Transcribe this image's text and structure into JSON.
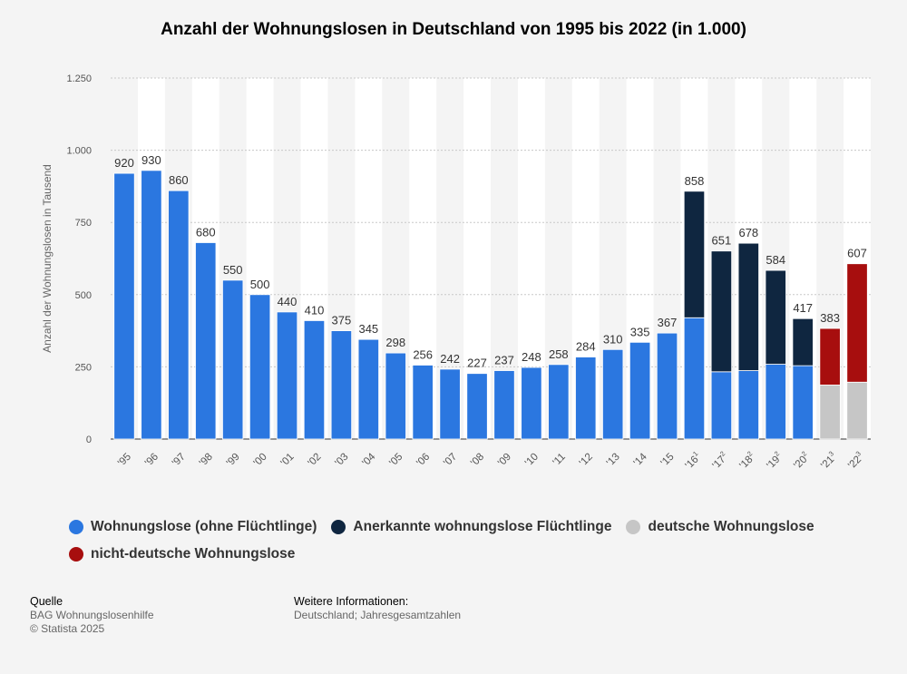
{
  "chart_data": {
    "type": "bar",
    "title": "Anzahl der Wohnungslosen in Deutschland von 1995 bis 2022 (in 1.000)",
    "ylabel": "Anzahl der Wohnungslosen in Tausend",
    "ylim": [
      0,
      1250
    ],
    "yticks": [
      0,
      250,
      500,
      750,
      1000,
      1250
    ],
    "ytick_labels": [
      "0",
      "250",
      "500",
      "750",
      "1.000",
      "1.250"
    ],
    "grid": true,
    "legend_position": "bottom",
    "categories": [
      {
        "label": "'95",
        "sup": ""
      },
      {
        "label": "'96",
        "sup": ""
      },
      {
        "label": "'97",
        "sup": ""
      },
      {
        "label": "'98",
        "sup": ""
      },
      {
        "label": "'99",
        "sup": ""
      },
      {
        "label": "'00",
        "sup": ""
      },
      {
        "label": "'01",
        "sup": ""
      },
      {
        "label": "'02",
        "sup": ""
      },
      {
        "label": "'03",
        "sup": ""
      },
      {
        "label": "'04",
        "sup": ""
      },
      {
        "label": "'05",
        "sup": ""
      },
      {
        "label": "'06",
        "sup": ""
      },
      {
        "label": "'07",
        "sup": ""
      },
      {
        "label": "'08",
        "sup": ""
      },
      {
        "label": "'09",
        "sup": ""
      },
      {
        "label": "'10",
        "sup": ""
      },
      {
        "label": "'11",
        "sup": ""
      },
      {
        "label": "'12",
        "sup": ""
      },
      {
        "label": "'13",
        "sup": ""
      },
      {
        "label": "'14",
        "sup": ""
      },
      {
        "label": "'15",
        "sup": ""
      },
      {
        "label": "'16",
        "sup": "1"
      },
      {
        "label": "'17",
        "sup": "2"
      },
      {
        "label": "'18",
        "sup": "2"
      },
      {
        "label": "'19",
        "sup": "2"
      },
      {
        "label": "'20",
        "sup": "2"
      },
      {
        "label": "'21",
        "sup": "3"
      },
      {
        "label": "'22",
        "sup": "3"
      }
    ],
    "series": [
      {
        "name": "Wohnungslose (ohne Flüchtlinge)",
        "color": "#2b77e0",
        "values": [
          920,
          930,
          860,
          680,
          550,
          500,
          440,
          410,
          375,
          345,
          298,
          256,
          242,
          227,
          237,
          248,
          258,
          284,
          310,
          335,
          367,
          420,
          233,
          237,
          259,
          254,
          null,
          null
        ]
      },
      {
        "name": "Anerkannte wohnungslose Flüchtlinge",
        "color": "#0f2640",
        "values": [
          null,
          null,
          null,
          null,
          null,
          null,
          null,
          null,
          null,
          null,
          null,
          null,
          null,
          null,
          null,
          null,
          null,
          null,
          null,
          null,
          null,
          438,
          418,
          441,
          325,
          163,
          null,
          null
        ]
      },
      {
        "name": "deutsche Wohnungslose",
        "color": "#c6c6c6",
        "values": [
          null,
          null,
          null,
          null,
          null,
          null,
          null,
          null,
          null,
          null,
          null,
          null,
          null,
          null,
          null,
          null,
          null,
          null,
          null,
          null,
          null,
          null,
          null,
          null,
          null,
          null,
          187,
          197
        ]
      },
      {
        "name": "nicht-deutsche Wohnungslose",
        "color": "#a70e0e",
        "values": [
          null,
          null,
          null,
          null,
          null,
          null,
          null,
          null,
          null,
          null,
          null,
          null,
          null,
          null,
          null,
          null,
          null,
          null,
          null,
          null,
          null,
          null,
          null,
          null,
          null,
          null,
          196,
          410
        ]
      }
    ],
    "totals": [
      920,
      930,
      860,
      680,
      550,
      500,
      440,
      410,
      375,
      345,
      298,
      256,
      242,
      227,
      237,
      248,
      258,
      284,
      310,
      335,
      367,
      858,
      651,
      678,
      584,
      417,
      383,
      607
    ]
  },
  "footer": {
    "source_heading": "Quelle",
    "source_text": "BAG Wohnungslosenhilfe",
    "copyright": "© Statista 2025",
    "info_heading": "Weitere Informationen:",
    "info_text": "Deutschland; Jahresgesamtzahlen"
  }
}
